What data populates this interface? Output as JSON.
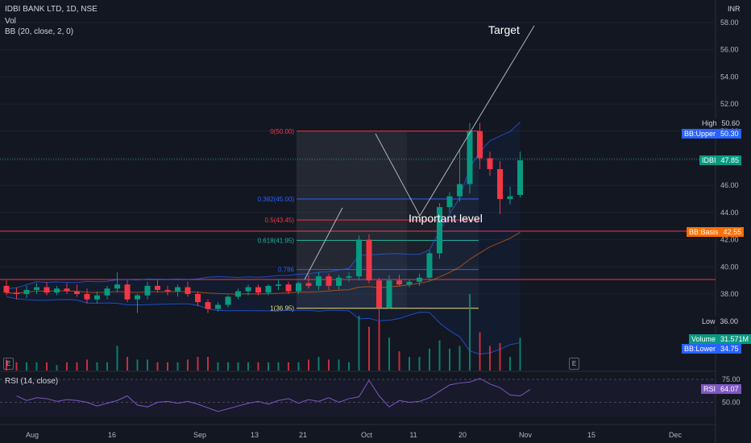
{
  "header": {
    "title": "IDBI BANK LTD, 1D, NSE",
    "volume_label": "Vol",
    "bb_label": "BB (20, close, 2, 0)",
    "rsi_label": "RSI (14, close)"
  },
  "currency": "INR",
  "annotations": {
    "target": "Target",
    "important_level": "Important level"
  },
  "fib_levels": [
    {
      "label": "0(50.00)",
      "ratio": 0,
      "price": 50.0,
      "color": "#f23645"
    },
    {
      "label": "0.382(45.00)",
      "ratio": 0.382,
      "price": 45.0,
      "color": "#2962ff"
    },
    {
      "label": "0.5(43.45)",
      "ratio": 0.5,
      "price": 43.45,
      "color": "#f23645"
    },
    {
      "label": "0.618(41.95)",
      "ratio": 0.618,
      "price": 41.95,
      "color": "#22ab94"
    },
    {
      "label": "0.786",
      "ratio": 0.786,
      "price": 39.8,
      "color": "#2962ff"
    },
    {
      "label": "1(36.95)",
      "ratio": 1,
      "price": 36.95,
      "color": "#f7e96a"
    }
  ],
  "price_tags": [
    {
      "label": "High",
      "value": "50.60",
      "price": 50.6,
      "label_bg": "#131722",
      "value_bg": "#131722",
      "color": "#d1d4dc"
    },
    {
      "label": "BB:Upper",
      "value": "50.30",
      "price": 49.8,
      "label_bg": "#2962ff",
      "value_bg": "#2962ff",
      "color": "#ffffff"
    },
    {
      "label": "IDBI",
      "value": "47.85",
      "price": 47.85,
      "label_bg": "#089981",
      "value_bg": "#089981",
      "color": "#ffffff"
    },
    {
      "label": "BB:Basis",
      "value": "42.55",
      "price": 42.55,
      "label_bg": "#ff6d00",
      "value_bg": "#ff6d00",
      "color": "#ffffff"
    },
    {
      "label": "Low",
      "value": "36.00",
      "price": 36.0,
      "label_bg": "#131722",
      "value_bg": "#131722",
      "color": "#d1d4dc"
    },
    {
      "label": "Volume",
      "value": "31.571M",
      "price": 34.7,
      "label_bg": "#089981",
      "value_bg": "#089981",
      "color": "#ffffff"
    },
    {
      "label": "BB:Lower",
      "value": "34.75",
      "price": 33.95,
      "label_bg": "#2962ff",
      "value_bg": "#2962ff",
      "color": "#ffffff"
    }
  ],
  "rsi_tag": {
    "label": "RSI",
    "value": "64.07"
  },
  "events": [
    "E",
    "E"
  ],
  "colors": {
    "up": "#089981",
    "down": "#f23645",
    "bb": "#2962ff",
    "basis": "#ff6d00",
    "rsi": "#7e57c2"
  },
  "chart_data": {
    "type": "candlestick",
    "y_axis": {
      "ticks": [
        "58.00",
        "56.00",
        "54.00",
        "52.00",
        "50.00",
        "48.00",
        "46.00",
        "44.00",
        "42.00",
        "40.00",
        "38.00"
      ],
      "range": [
        35,
        59
      ]
    },
    "rsi_axis": {
      "ticks": [
        "75.00",
        "50.00"
      ]
    },
    "x_axis": {
      "ticks": [
        "Aug",
        "16",
        "Sep",
        "13",
        "21",
        "Oct",
        "11",
        "20",
        "Nov",
        "15",
        "Dec"
      ]
    },
    "candles": [
      {
        "o": 38.6,
        "h": 39.0,
        "l": 37.9,
        "c": 38.1,
        "v": 4
      },
      {
        "o": 38.1,
        "h": 38.5,
        "l": 37.6,
        "c": 38.0,
        "v": 3
      },
      {
        "o": 38.0,
        "h": 38.6,
        "l": 37.7,
        "c": 38.3,
        "v": 3
      },
      {
        "o": 38.3,
        "h": 38.8,
        "l": 38.0,
        "c": 38.5,
        "v": 3
      },
      {
        "o": 38.5,
        "h": 38.9,
        "l": 37.9,
        "c": 38.1,
        "v": 3
      },
      {
        "o": 38.1,
        "h": 38.6,
        "l": 37.9,
        "c": 38.4,
        "v": 2
      },
      {
        "o": 38.4,
        "h": 38.8,
        "l": 38.0,
        "c": 38.2,
        "v": 3
      },
      {
        "o": 38.2,
        "h": 38.7,
        "l": 37.8,
        "c": 38.0,
        "v": 3
      },
      {
        "o": 38.0,
        "h": 38.4,
        "l": 37.3,
        "c": 37.6,
        "v": 4
      },
      {
        "o": 37.6,
        "h": 38.2,
        "l": 37.3,
        "c": 37.9,
        "v": 3
      },
      {
        "o": 37.9,
        "h": 38.6,
        "l": 37.6,
        "c": 38.4,
        "v": 3
      },
      {
        "o": 38.4,
        "h": 39.6,
        "l": 38.1,
        "c": 38.7,
        "v": 9
      },
      {
        "o": 38.7,
        "h": 39.0,
        "l": 37.4,
        "c": 37.6,
        "v": 5
      },
      {
        "o": 37.6,
        "h": 38.0,
        "l": 36.6,
        "c": 37.9,
        "v": 4
      },
      {
        "o": 37.9,
        "h": 38.9,
        "l": 37.6,
        "c": 38.6,
        "v": 4
      },
      {
        "o": 38.6,
        "h": 39.0,
        "l": 38.1,
        "c": 38.3,
        "v": 3
      },
      {
        "o": 38.3,
        "h": 38.6,
        "l": 37.9,
        "c": 38.2,
        "v": 3
      },
      {
        "o": 38.2,
        "h": 38.7,
        "l": 37.8,
        "c": 38.5,
        "v": 3
      },
      {
        "o": 38.5,
        "h": 38.9,
        "l": 37.8,
        "c": 38.0,
        "v": 4
      },
      {
        "o": 38.0,
        "h": 38.2,
        "l": 37.1,
        "c": 37.4,
        "v": 5
      },
      {
        "o": 37.4,
        "h": 37.6,
        "l": 36.6,
        "c": 36.9,
        "v": 5
      },
      {
        "o": 36.9,
        "h": 37.4,
        "l": 36.7,
        "c": 37.2,
        "v": 3
      },
      {
        "o": 37.2,
        "h": 37.9,
        "l": 37.0,
        "c": 37.8,
        "v": 3
      },
      {
        "o": 37.8,
        "h": 38.4,
        "l": 37.6,
        "c": 38.2,
        "v": 3
      },
      {
        "o": 38.2,
        "h": 38.7,
        "l": 37.9,
        "c": 38.5,
        "v": 3
      },
      {
        "o": 38.5,
        "h": 38.7,
        "l": 37.9,
        "c": 38.1,
        "v": 3
      },
      {
        "o": 38.1,
        "h": 38.7,
        "l": 37.9,
        "c": 38.6,
        "v": 3
      },
      {
        "o": 38.6,
        "h": 39.1,
        "l": 38.3,
        "c": 38.7,
        "v": 3
      },
      {
        "o": 38.7,
        "h": 38.9,
        "l": 38.0,
        "c": 38.2,
        "v": 3
      },
      {
        "o": 38.2,
        "h": 38.9,
        "l": 38.0,
        "c": 38.8,
        "v": 3
      },
      {
        "o": 38.8,
        "h": 39.4,
        "l": 38.4,
        "c": 38.6,
        "v": 4
      },
      {
        "o": 38.6,
        "h": 39.6,
        "l": 38.3,
        "c": 39.3,
        "v": 5
      },
      {
        "o": 39.3,
        "h": 39.5,
        "l": 38.3,
        "c": 38.6,
        "v": 4
      },
      {
        "o": 38.6,
        "h": 39.4,
        "l": 38.3,
        "c": 39.2,
        "v": 4
      },
      {
        "o": 39.2,
        "h": 39.6,
        "l": 38.9,
        "c": 39.3,
        "v": 3
      },
      {
        "o": 39.3,
        "h": 42.3,
        "l": 39.0,
        "c": 42.0,
        "v": 20
      },
      {
        "o": 42.0,
        "h": 42.4,
        "l": 38.8,
        "c": 39.0,
        "v": 16
      },
      {
        "o": 39.0,
        "h": 39.2,
        "l": 36.0,
        "c": 37.0,
        "v": 18
      },
      {
        "o": 37.0,
        "h": 39.4,
        "l": 36.9,
        "c": 39.0,
        "v": 12
      },
      {
        "o": 39.0,
        "h": 39.4,
        "l": 38.6,
        "c": 38.7,
        "v": 7
      },
      {
        "o": 38.7,
        "h": 39.1,
        "l": 38.5,
        "c": 38.9,
        "v": 5
      },
      {
        "o": 38.9,
        "h": 39.5,
        "l": 38.6,
        "c": 39.2,
        "v": 5
      },
      {
        "o": 39.2,
        "h": 41.2,
        "l": 39.0,
        "c": 41.0,
        "v": 8
      },
      {
        "o": 41.0,
        "h": 44.7,
        "l": 40.6,
        "c": 44.4,
        "v": 11
      },
      {
        "o": 44.4,
        "h": 45.5,
        "l": 44.0,
        "c": 45.2,
        "v": 8
      },
      {
        "o": 45.2,
        "h": 48.7,
        "l": 44.8,
        "c": 46.1,
        "v": 9
      },
      {
        "o": 46.1,
        "h": 50.6,
        "l": 45.4,
        "c": 50.0,
        "v": 28
      },
      {
        "o": 50.0,
        "h": 50.6,
        "l": 47.2,
        "c": 48.0,
        "v": 14
      },
      {
        "o": 48.0,
        "h": 48.5,
        "l": 46.7,
        "c": 47.2,
        "v": 9
      },
      {
        "o": 47.2,
        "h": 47.8,
        "l": 43.9,
        "c": 45.0,
        "v": 10
      },
      {
        "o": 45.0,
        "h": 45.9,
        "l": 44.6,
        "c": 45.2,
        "v": 5
      },
      {
        "o": 45.3,
        "h": 48.5,
        "l": 45.1,
        "c": 47.85,
        "v": 12
      }
    ],
    "rsi": [
      57,
      52,
      55,
      54,
      51,
      53,
      52,
      50,
      46,
      49,
      52,
      57,
      47,
      45,
      50,
      51,
      49,
      51,
      48,
      44,
      40,
      43,
      46,
      49,
      51,
      48,
      52,
      54,
      49,
      53,
      51,
      55,
      50,
      54,
      56,
      74,
      57,
      45,
      52,
      50,
      51,
      55,
      62,
      69,
      71,
      72,
      76,
      70,
      66,
      58,
      57,
      64
    ]
  }
}
